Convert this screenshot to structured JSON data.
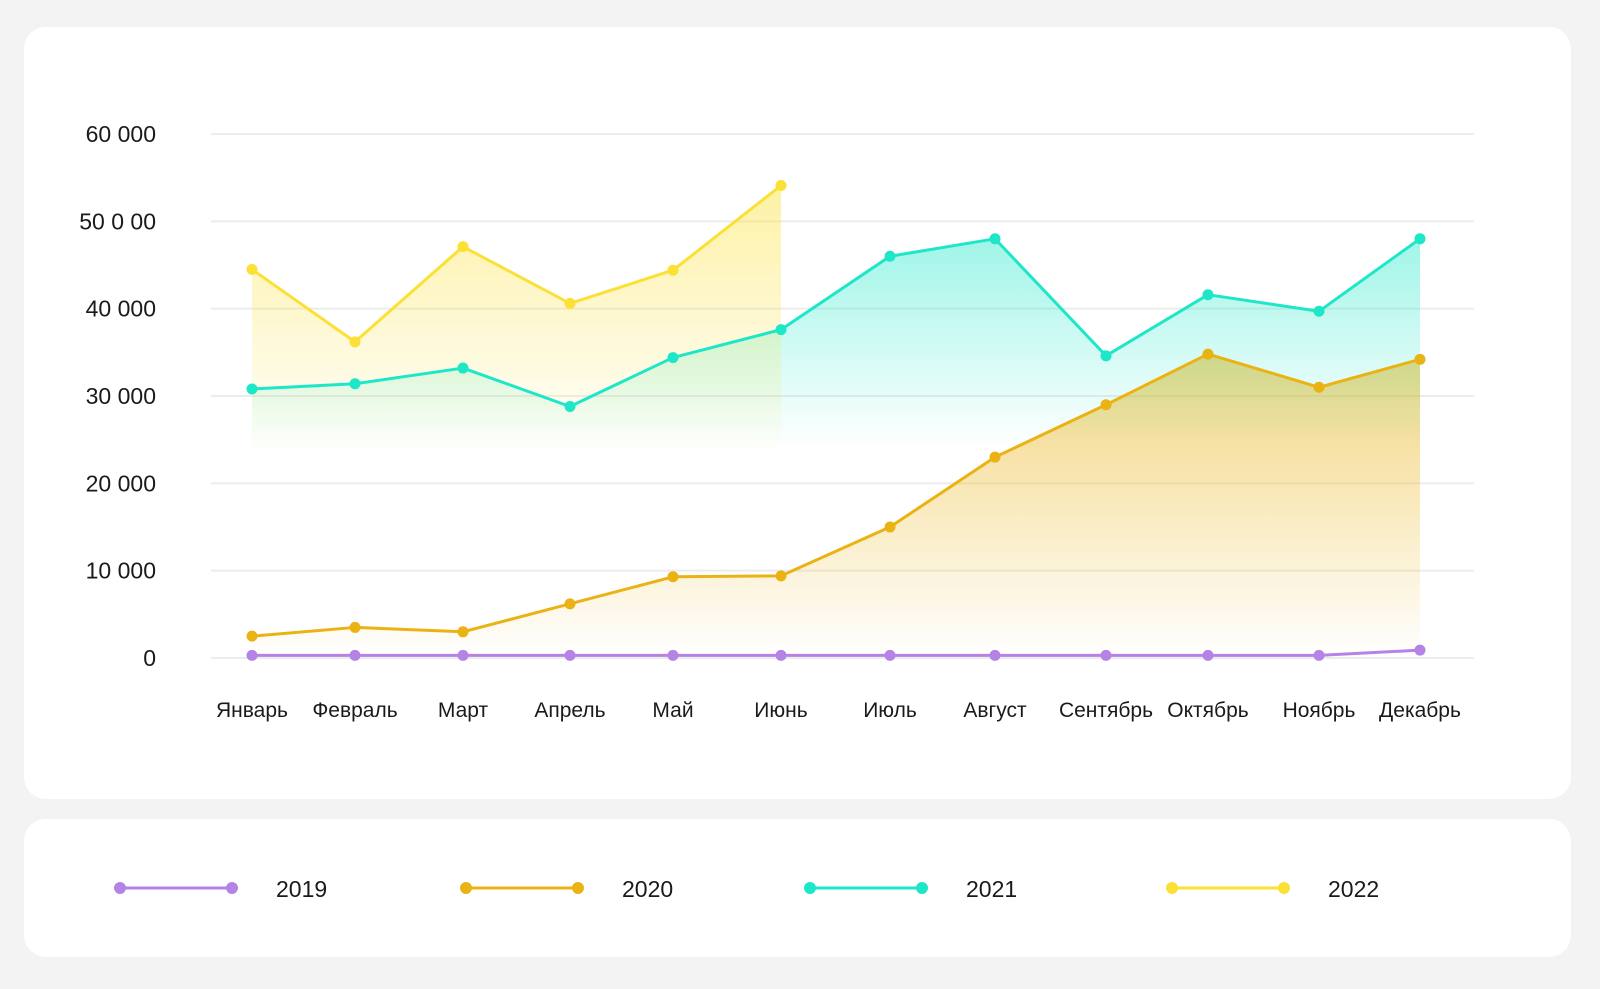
{
  "chart_data": {
    "type": "area",
    "title": "",
    "xlabel": "",
    "ylabel": "",
    "categories": [
      "Январь",
      "Февраль",
      "Март",
      "Апрель",
      "Май",
      "Июнь",
      "Июль",
      "Август",
      "Сентябрь",
      "Октябрь",
      "Ноябрь",
      "Декабрь"
    ],
    "y_ticks": [
      0,
      10000,
      20000,
      30000,
      40000,
      50000,
      60000
    ],
    "y_tick_labels": [
      "0",
      "10 000",
      "20 000",
      "30 000",
      "40 000",
      "50 0 00",
      "60 000"
    ],
    "ylim": [
      0,
      60000
    ],
    "grid": true,
    "legend_placement": "bottom",
    "series": [
      {
        "name": "2019",
        "color": "#b582e6",
        "values": [
          300,
          300,
          300,
          300,
          300,
          300,
          300,
          300,
          300,
          300,
          300,
          900
        ]
      },
      {
        "name": "2020",
        "color": "#ebb214",
        "values": [
          2500,
          3500,
          3000,
          6200,
          9300,
          9400,
          15000,
          23000,
          29000,
          34800,
          31000,
          34200
        ]
      },
      {
        "name": "2021",
        "color": "#1de7c8",
        "values": [
          30800,
          31400,
          33200,
          28800,
          34400,
          37600,
          46000,
          48000,
          34600,
          41600,
          39700,
          48000
        ]
      },
      {
        "name": "2022",
        "color": "#fbe035",
        "values": [
          44500,
          36200,
          47100,
          40600,
          44400,
          54100,
          null,
          null,
          null,
          null,
          null,
          null
        ]
      }
    ]
  },
  "legend": [
    {
      "label": "2019",
      "color": "#b582e6"
    },
    {
      "label": "2020",
      "color": "#ebb214"
    },
    {
      "label": "2021",
      "color": "#1de7c8"
    },
    {
      "label": "2022",
      "color": "#fbe035"
    }
  ]
}
